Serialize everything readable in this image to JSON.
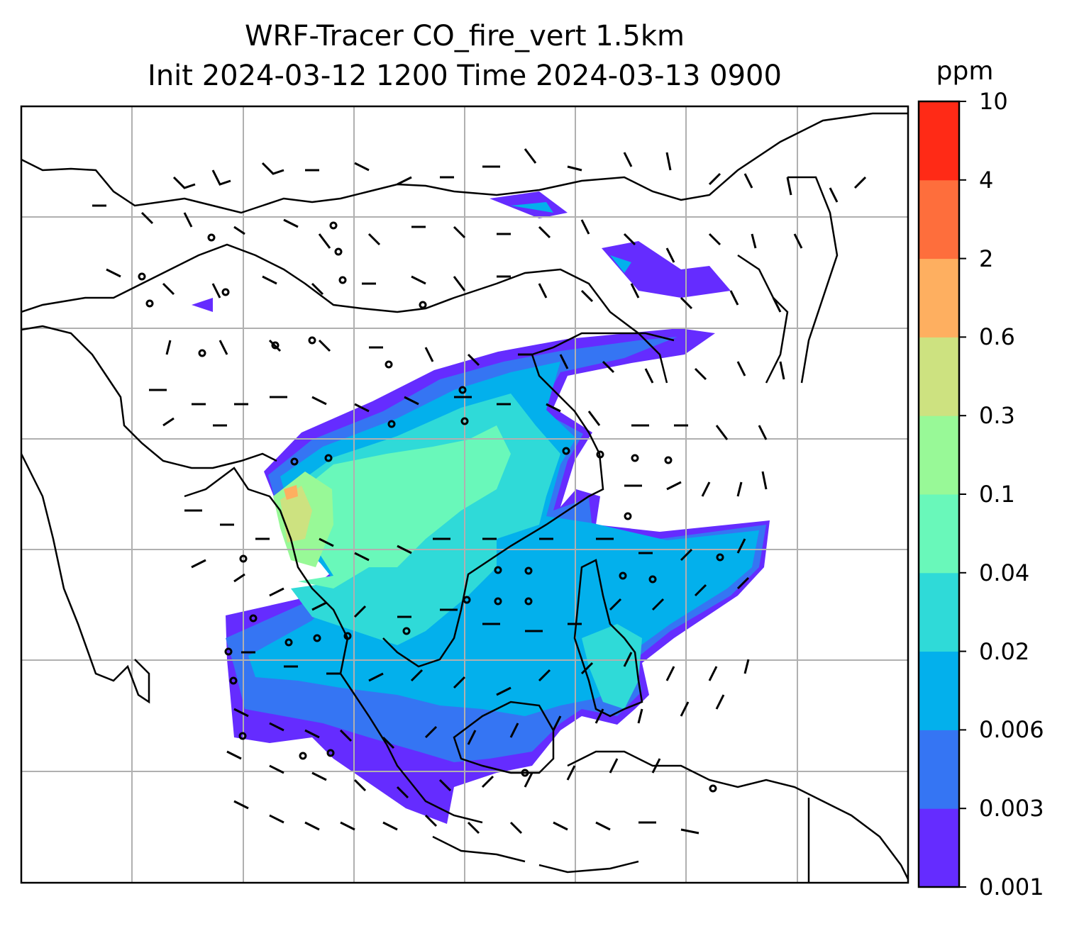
{
  "title": {
    "line1": "WRF-Tracer CO_fire_vert 1.5km",
    "line2": "Init 2024-03-12 1200 Time 2024-03-13 0900"
  },
  "colorbar": {
    "unit": "ppm",
    "levels": [
      "0.001",
      "0.003",
      "0.006",
      "0.02",
      "0.04",
      "0.1",
      "0.3",
      "0.6",
      "2",
      "4",
      "10"
    ],
    "colors": [
      "#652cff",
      "#3575f3",
      "#03b0ec",
      "#2fdad8",
      "#69f8ba",
      "#98f997",
      "#cde280",
      "#feaf60",
      "#fe6e3c",
      "#ff2a16"
    ]
  },
  "map": {
    "gridlines": true,
    "wind_barbs": true,
    "style": {
      "coast_color": "#000000",
      "grid_color": "#b0b0b0"
    }
  }
}
